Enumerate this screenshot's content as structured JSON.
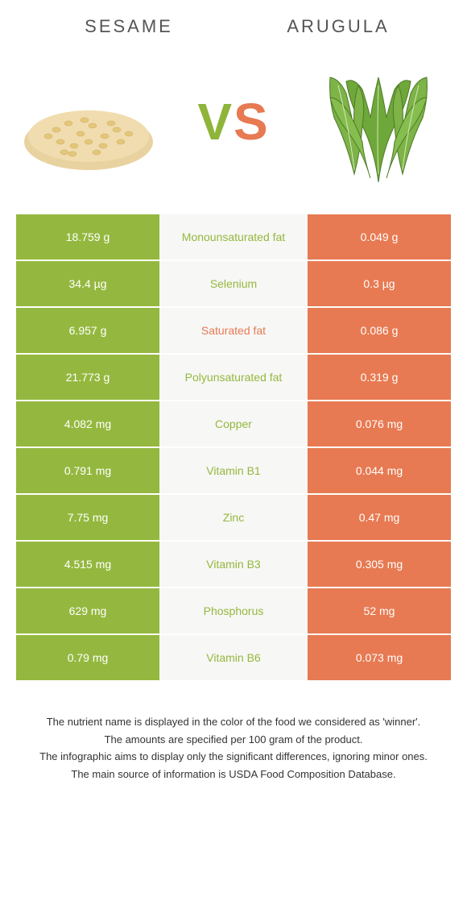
{
  "food_a": {
    "name": "Sesame"
  },
  "food_b": {
    "name": "Arugula"
  },
  "vs": {
    "v": "V",
    "s": "S"
  },
  "colors": {
    "food_a": "#94b83f",
    "food_b": "#e77a52",
    "mid_bg": "#f7f7f5"
  },
  "rows": [
    {
      "a": "18.759 g",
      "label": "Monounsaturated fat",
      "b": "0.049 g",
      "winner": "a"
    },
    {
      "a": "34.4 µg",
      "label": "Selenium",
      "b": "0.3 µg",
      "winner": "a"
    },
    {
      "a": "6.957 g",
      "label": "Saturated fat",
      "b": "0.086 g",
      "winner": "b"
    },
    {
      "a": "21.773 g",
      "label": "Polyunsaturated fat",
      "b": "0.319 g",
      "winner": "a"
    },
    {
      "a": "4.082 mg",
      "label": "Copper",
      "b": "0.076 mg",
      "winner": "a"
    },
    {
      "a": "0.791 mg",
      "label": "Vitamin B1",
      "b": "0.044 mg",
      "winner": "a"
    },
    {
      "a": "7.75 mg",
      "label": "Zinc",
      "b": "0.47 mg",
      "winner": "a"
    },
    {
      "a": "4.515 mg",
      "label": "Vitamin B3",
      "b": "0.305 mg",
      "winner": "a"
    },
    {
      "a": "629 mg",
      "label": "Phosphorus",
      "b": "52 mg",
      "winner": "a"
    },
    {
      "a": "0.79 mg",
      "label": "Vitamin B6",
      "b": "0.073 mg",
      "winner": "a"
    }
  ],
  "footer": {
    "l1": "The nutrient name is displayed in the color of the food we considered as 'winner'.",
    "l2": "The amounts are specified per 100 gram of the product.",
    "l3": "The infographic aims to display only the significant differences, ignoring minor ones.",
    "l4": "The main source of information is USDA Food Composition Database."
  }
}
